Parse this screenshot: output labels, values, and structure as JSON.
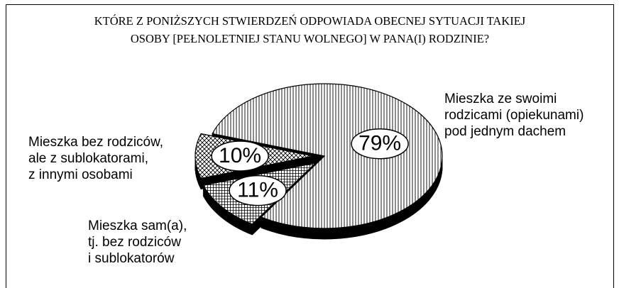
{
  "chart_data": {
    "type": "pie",
    "title": "KTÓRE Z PONIŻSZYCH STWIERDZEŃ ODPOWIADA OBECNEJ SYTUACJI TAKIEJ\nOSOBY [PEŁNOLETNIEJ STANU WOLNEGO] W PANA(I) RODZINIE?",
    "categories": [
      "Mieszka ze swoimi\nrodzicami (opiekunami)\npod jednym dachem",
      "Mieszka bez rodziców,\nale z sublokatorami,\nz innymi osobami",
      "Mieszka sam(a),\ntj. bez rodziców\ni sublokatorów"
    ],
    "values": [
      79,
      10,
      11
    ],
    "value_labels": [
      "79%",
      "10%",
      "11%"
    ]
  }
}
